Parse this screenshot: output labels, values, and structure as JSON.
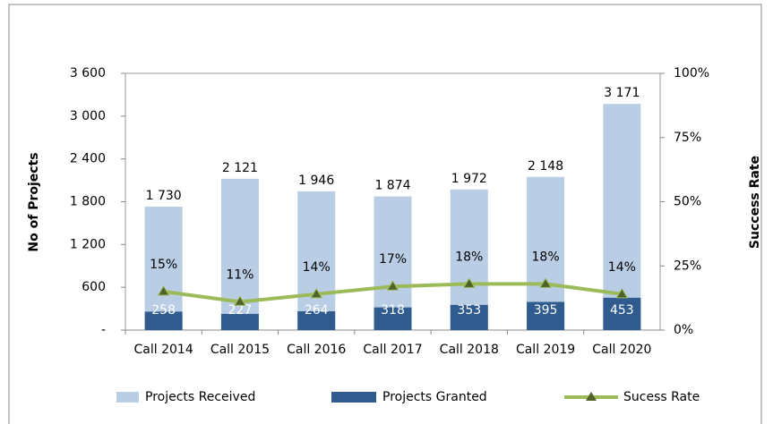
{
  "chart_data": {
    "type": "bar-line",
    "ylabel": "No of Projects",
    "y2label": "Success Rate",
    "categories": [
      "Call 2014",
      "Call 2015",
      "Call 2016",
      "Call 2017",
      "Call 2018",
      "Call 2019",
      "Call 2020"
    ],
    "series": [
      {
        "name": "Projects Received",
        "color": "#b9cde5",
        "values": [
          1730,
          2121,
          1946,
          1874,
          1972,
          2148,
          3171
        ],
        "value_labels": [
          "1 730",
          "2 121",
          "1 946",
          "1 874",
          "1 972",
          "2 148",
          "3 171"
        ]
      },
      {
        "name": "Projects Granted",
        "color": "#2f5b8f",
        "values": [
          258,
          227,
          264,
          318,
          353,
          395,
          453
        ]
      },
      {
        "name": "Sucess Rate",
        "color": "#9bbb59",
        "marker_color": "#4f6228",
        "axis": "y2",
        "values": [
          15,
          11,
          14,
          17,
          18,
          18,
          14
        ],
        "value_labels": [
          "15%",
          "11%",
          "14%",
          "17%",
          "18%",
          "18%",
          "14%"
        ]
      }
    ],
    "ylim": [
      0,
      3600
    ],
    "yticks": [
      {
        "value": 0,
        "label": "-"
      },
      600,
      {
        "value": 1200,
        "label": "1 200"
      },
      {
        "value": 1800,
        "label": "1 800"
      },
      {
        "value": 2400,
        "label": "2 400"
      },
      {
        "value": 3000,
        "label": "3 000"
      },
      {
        "value": 3600,
        "label": "3 600"
      }
    ],
    "y2lim": [
      0,
      100
    ],
    "y2ticks": [
      {
        "value": 0,
        "label": "0%"
      },
      {
        "value": 25,
        "label": "25%"
      },
      {
        "value": 50,
        "label": "50%"
      },
      {
        "value": 75,
        "label": "75%"
      },
      {
        "value": 100,
        "label": "100%"
      }
    ],
    "legend": "bottom"
  }
}
